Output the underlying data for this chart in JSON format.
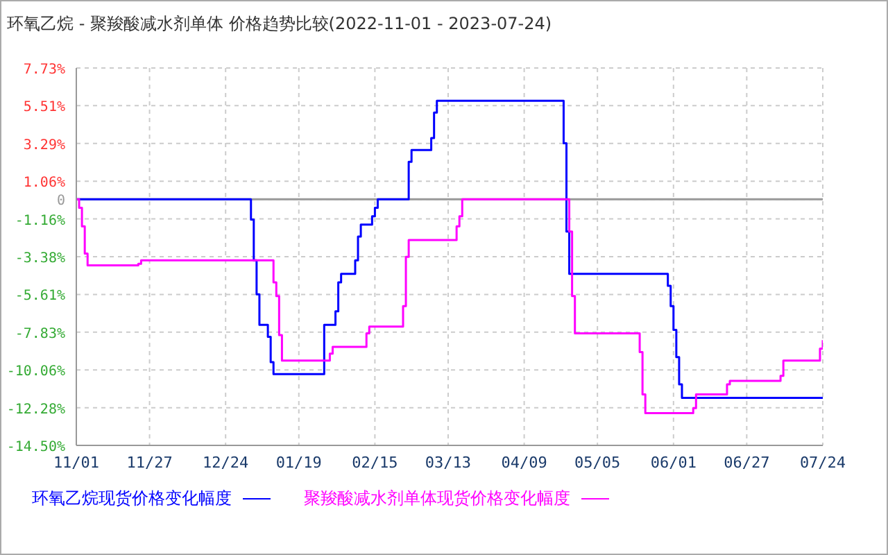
{
  "chart_data": {
    "type": "step",
    "title": "环氧乙烷 - 聚羧酸减水剂单体 价格趋势比较(2022-11-01 - 2023-07-24)",
    "series": [
      {
        "name": "环氧乙烷现货价格变化幅度",
        "color": "#0000ff",
        "x": [
          "2022-11-01",
          "2023-01-02",
          "2023-01-03",
          "2023-01-04",
          "2023-01-05",
          "2023-01-08",
          "2023-01-09",
          "2023-01-10",
          "2023-01-28",
          "2023-02-01",
          "2023-02-02",
          "2023-02-03",
          "2023-02-08",
          "2023-02-09",
          "2023-02-10",
          "2023-02-14",
          "2023-02-15",
          "2023-02-16",
          "2023-02-27",
          "2023-02-28",
          "2023-03-07",
          "2023-03-08",
          "2023-03-09",
          "2023-04-23",
          "2023-04-24",
          "2023-04-25",
          "2023-05-30",
          "2023-05-31",
          "2023-06-01",
          "2023-06-02",
          "2023-06-03",
          "2023-06-04",
          "2023-07-24"
        ],
        "values": [
          0,
          -1.2,
          -3.6,
          -5.6,
          -7.4,
          -8.1,
          -9.6,
          -10.3,
          -7.4,
          -6.6,
          -4.9,
          -4.4,
          -3.6,
          -2.2,
          -1.5,
          -1.0,
          -0.5,
          0,
          2.2,
          2.9,
          3.6,
          5.1,
          5.8,
          3.3,
          -1.9,
          -4.4,
          -5.1,
          -6.3,
          -7.7,
          -9.3,
          -10.9,
          -11.7,
          -11.7
        ]
      },
      {
        "name": "聚羧酸减水剂单体现货价格变化幅度",
        "color": "#ff00ff",
        "x": [
          "2022-11-01",
          "2022-11-02",
          "2022-11-03",
          "2022-11-04",
          "2022-11-05",
          "2022-11-23",
          "2022-11-24",
          "2023-01-10",
          "2023-01-11",
          "2023-01-12",
          "2023-01-13",
          "2023-01-30",
          "2023-01-31",
          "2023-02-12",
          "2023-02-13",
          "2023-02-25",
          "2023-02-26",
          "2023-02-27",
          "2023-03-16",
          "2023-03-17",
          "2023-03-18",
          "2023-04-25",
          "2023-04-26",
          "2023-04-27",
          "2023-05-20",
          "2023-05-21",
          "2023-05-22",
          "2023-06-08",
          "2023-06-09",
          "2023-06-20",
          "2023-06-21",
          "2023-07-09",
          "2023-07-10",
          "2023-07-23",
          "2023-07-24"
        ],
        "values": [
          0,
          -0.5,
          -1.6,
          -3.2,
          -3.9,
          -3.8,
          -3.6,
          -4.9,
          -5.7,
          -8.0,
          -9.5,
          -9.1,
          -8.7,
          -7.9,
          -7.5,
          -6.3,
          -3.4,
          -2.4,
          -1.6,
          -1.0,
          0,
          -1.9,
          -5.7,
          -7.9,
          -9.0,
          -11.5,
          -12.6,
          -12.3,
          -11.5,
          -10.9,
          -10.7,
          -10.4,
          -9.5,
          -8.8,
          -8.3
        ]
      }
    ],
    "xlim": [
      "2022-11-01",
      "2023-07-24"
    ],
    "xticks": [
      {
        "value": "2022-11-01",
        "label": "11/01"
      },
      {
        "value": "2022-11-27",
        "label": "11/27"
      },
      {
        "value": "2022-12-24",
        "label": "12/24"
      },
      {
        "value": "2023-01-19",
        "label": "01/19"
      },
      {
        "value": "2023-02-15",
        "label": "02/15"
      },
      {
        "value": "2023-03-13",
        "label": "03/13"
      },
      {
        "value": "2023-04-09",
        "label": "04/09"
      },
      {
        "value": "2023-05-05",
        "label": "05/05"
      },
      {
        "value": "2023-06-01",
        "label": "06/01"
      },
      {
        "value": "2023-06-27",
        "label": "06/27"
      },
      {
        "value": "2023-07-24",
        "label": "07/24"
      }
    ],
    "ylim": [
      -14.5,
      7.73
    ],
    "yticks": [
      {
        "value": -14.5,
        "label": "-14.50%"
      },
      {
        "value": -12.28,
        "label": "-12.28%"
      },
      {
        "value": -10.06,
        "label": "-10.06%"
      },
      {
        "value": -7.83,
        "label": "-7.83%"
      },
      {
        "value": -5.61,
        "label": "-5.61%"
      },
      {
        "value": -3.38,
        "label": "-3.38%"
      },
      {
        "value": -1.16,
        "label": "-1.16%"
      },
      0,
      {
        "value": 1.06,
        "label": "1.06%"
      },
      {
        "value": 3.29,
        "label": "3.29%"
      },
      {
        "value": 5.51,
        "label": "5.51%"
      },
      {
        "value": 7.73,
        "label": "7.73%"
      }
    ],
    "ref_lines": [
      {
        "axis": "y",
        "value": 0,
        "color": "#999999"
      }
    ],
    "grid": true,
    "legend": "bottom"
  }
}
